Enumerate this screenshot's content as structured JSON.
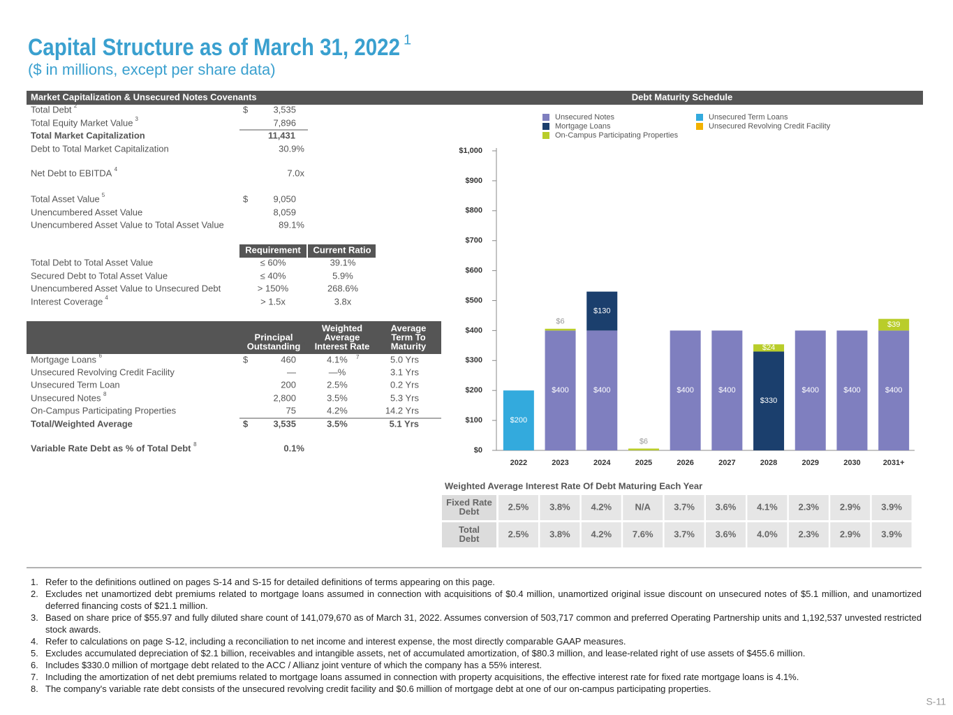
{
  "header": {
    "title": "Capital Structure as of March 31, 2022",
    "title_note": "1",
    "subtitle": "($ in millions, except per share data)"
  },
  "market_cap": {
    "heading": "Market Capitalization & Unsecured Notes Covenants",
    "rows": [
      {
        "label": "Total Debt",
        "note": "2",
        "currency": "$",
        "value": "3,535"
      },
      {
        "label": "Total Equity Market Value",
        "note": "3",
        "value": "7,896"
      },
      {
        "label": "Total Market Capitalization",
        "value": "11,431"
      },
      {
        "label": "Debt to Total Market Capitalization",
        "value": "30.9%"
      },
      {
        "label": "Net Debt to EBITDA",
        "note": "4",
        "value": "7.0x"
      },
      {
        "label": "Total Asset Value",
        "note": "5",
        "currency": "$",
        "value": "9,050"
      },
      {
        "label": "Unencumbered Asset Value",
        "value": "8,059"
      },
      {
        "label": "Unencumbered Asset Value to Total Asset Value",
        "value": "89.1%"
      }
    ]
  },
  "covenants": {
    "columns": [
      "Requirement",
      "Current Ratio"
    ],
    "rows": [
      {
        "label": "Total Debt to Total Asset Value",
        "requirement": "≤ 60%",
        "ratio": "39.1%"
      },
      {
        "label": "Secured Debt to Total Asset Value",
        "requirement": "≤ 40%",
        "ratio": "5.9%"
      },
      {
        "label": "Unencumbered Asset Value to Unsecured Debt",
        "requirement": "> 150%",
        "ratio": "268.6%"
      },
      {
        "label": "Interest Coverage",
        "note": "4",
        "requirement": "> 1.5x",
        "ratio": "3.8x"
      }
    ]
  },
  "debt_summary": {
    "columns": [
      {
        "lines": [
          "Principal",
          "Outstanding"
        ],
        "note": "2"
      },
      {
        "lines": [
          "Weighted",
          "Average",
          "Interest Rate"
        ]
      },
      {
        "lines": [
          "Average",
          "Term To",
          "Maturity"
        ]
      }
    ],
    "rows": [
      {
        "label": "Mortgage Loans",
        "note": "6",
        "currency": "$",
        "principal": "460",
        "rate": "4.1%",
        "rate_note": "7",
        "term": "5.0 Yrs"
      },
      {
        "label": "Unsecured Revolving Credit Facility",
        "principal": "—",
        "rate": "—%",
        "term": "3.1 Yrs"
      },
      {
        "label": "Unsecured Term Loan",
        "principal": "200",
        "rate": "2.5%",
        "term": "0.2 Yrs"
      },
      {
        "label": "Unsecured Notes",
        "note": "8",
        "principal": "2,800",
        "rate": "3.5%",
        "term": "5.3 Yrs"
      },
      {
        "label": "On-Campus Participating Properties",
        "principal": "75",
        "rate": "4.2%",
        "term": "14.2 Yrs"
      },
      {
        "label": "Total/Weighted Average",
        "currency": "$",
        "principal": "3,535",
        "rate": "3.5%",
        "term": "5.1 Yrs"
      }
    ],
    "variable_rate": {
      "label": "Variable Rate Debt as % of Total Debt",
      "note": "8",
      "value": "0.1%"
    }
  },
  "chart_data": {
    "type": "stacked_bar",
    "title": "Debt Maturity Schedule",
    "categories": [
      "2022",
      "2023",
      "2024",
      "2025",
      "2026",
      "2027",
      "2028",
      "2029",
      "2030",
      "2031+"
    ],
    "series": [
      {
        "name": "Unsecured Notes",
        "color": "#7f7fbf",
        "values": [
          null,
          400,
          400,
          null,
          400,
          400,
          null,
          400,
          400,
          400
        ],
        "value_labels": [
          null,
          "$400",
          "$400",
          null,
          "$400",
          "$400",
          null,
          "$400",
          "$400",
          "$400"
        ]
      },
      {
        "name": "Mortgage Loans",
        "color": "#1b3f6d",
        "values": [
          null,
          null,
          130,
          null,
          null,
          null,
          330,
          null,
          null,
          null
        ],
        "value_labels": [
          null,
          null,
          "$130",
          null,
          null,
          null,
          "$330",
          null,
          null,
          null
        ]
      },
      {
        "name": "On-Campus Participating Properties",
        "color": "#b9cd2a",
        "values": [
          null,
          6,
          null,
          6,
          null,
          null,
          24,
          null,
          null,
          39
        ],
        "value_labels": [
          null,
          "$6",
          null,
          "$6",
          null,
          null,
          "$24",
          null,
          null,
          "$39"
        ]
      },
      {
        "name": "Unsecured Term Loans",
        "color": "#33aadd",
        "values": [
          200,
          null,
          null,
          null,
          null,
          null,
          null,
          null,
          null,
          null
        ],
        "value_labels": [
          "$200",
          null,
          null,
          null,
          null,
          null,
          null,
          null,
          null,
          null
        ]
      },
      {
        "name": "Unsecured Revolving Credit Facility",
        "color": "#f2b200",
        "values": [
          null,
          null,
          null,
          null,
          null,
          null,
          null,
          null,
          null,
          null
        ]
      }
    ],
    "ylim": [
      0,
      1000
    ],
    "yticks": [
      {
        "value": 0,
        "label": "$0"
      },
      {
        "value": 100,
        "label": "$100"
      },
      {
        "value": 200,
        "label": "$200"
      },
      {
        "value": 300,
        "label": "$300"
      },
      {
        "value": 400,
        "label": "$400"
      },
      {
        "value": 500,
        "label": "$500"
      },
      {
        "value": 600,
        "label": "$600"
      },
      {
        "value": 700,
        "label": "$700"
      },
      {
        "value": 800,
        "label": "$800"
      },
      {
        "value": 900,
        "label": "$900"
      },
      {
        "value": 1000,
        "label": "$1,000"
      }
    ],
    "legend": "top"
  },
  "rate_table": {
    "title": "Weighted Average Interest Rate Of Debt Maturing Each Year",
    "rows": [
      {
        "label": [
          "Fixed Rate",
          "Debt"
        ],
        "values": [
          "2.5%",
          "3.8%",
          "4.2%",
          "N/A",
          "3.7%",
          "3.6%",
          "4.1%",
          "2.3%",
          "2.9%",
          "3.9%"
        ]
      },
      {
        "label": [
          "Total",
          "Debt"
        ],
        "values": [
          "2.5%",
          "3.8%",
          "4.2%",
          "7.6%",
          "3.7%",
          "3.6%",
          "4.0%",
          "2.3%",
          "2.9%",
          "3.9%"
        ]
      }
    ]
  },
  "footnotes": [
    {
      "num": "1.",
      "text": "Refer to the definitions outlined on pages S-14 and S-15 for detailed definitions of terms appearing on this page."
    },
    {
      "num": "2.",
      "text": "Excludes net unamortized debt premiums related to mortgage loans assumed in connection with acquisitions of $0.4 million, unamortized original issue discount on unsecured notes of $5.1 million, and unamortized deferred financing costs of $21.1 million."
    },
    {
      "num": "3.",
      "text": "Based on share price of $55.97 and fully diluted share count of 141,079,670 as of March 31, 2022. Assumes conversion of 503,717 common and preferred Operating Partnership units and 1,192,537 unvested restricted stock awards."
    },
    {
      "num": "4.",
      "text": "Refer to calculations on page S-12, including a reconciliation to net income and interest expense, the most directly comparable GAAP measures."
    },
    {
      "num": "5.",
      "text": "Excludes accumulated depreciation of $2.1 billion, receivables and intangible assets, net of accumulated amortization, of $80.3 million, and lease-related right of use assets of $455.6 million."
    },
    {
      "num": "6.",
      "text": "Includes $330.0 million of mortgage debt related to the ACC / Allianz joint venture of which the company has a 55% interest."
    },
    {
      "num": "7.",
      "text": "Including the amortization of net debt premiums related to mortgage loans assumed in connection with property acquisitions, the effective interest rate for fixed rate mortgage loans is 4.1%."
    },
    {
      "num": "8.",
      "text": "The company's variable rate debt consists of the unsecured revolving credit facility and $0.6 million of mortgage debt at one of our on-campus participating properties."
    }
  ],
  "page_number": "S-11"
}
